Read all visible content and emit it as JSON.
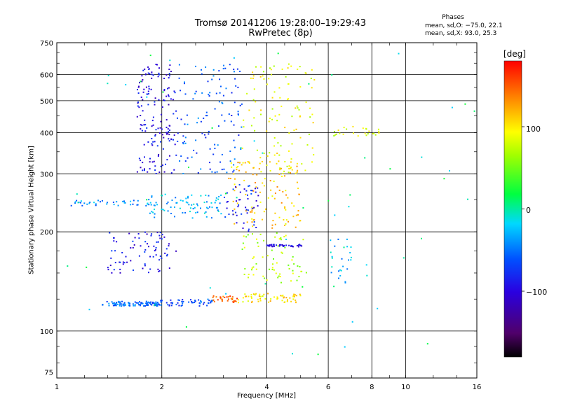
{
  "header": {
    "title_line1": "Tromsø 20141206 19:28:00–19:29:43",
    "title_line2": "RwPretec (8p)"
  },
  "phases_box": {
    "title": "Phases",
    "line_o": "mean, sd,O: −75.0, 22.1",
    "line_x": "mean, sd,X:  93.0, 25.3"
  },
  "colorbar": {
    "unit": "[deg]",
    "ticks": [
      "100",
      "0",
      "−100"
    ],
    "tick_values": [
      100,
      0,
      -100
    ],
    "range": [
      -180,
      180
    ],
    "colormap": "rainbow (black-purple-blue-cyan-green-yellow-orange-red)"
  },
  "chart_data": {
    "type": "scatter",
    "xlabel": "Frequency [MHz]",
    "ylabel": "Stationary phase Virtual Height [km]",
    "xscale": "log",
    "yscale": "log",
    "xlim": [
      1,
      16
    ],
    "ylim": [
      72,
      750
    ],
    "x_ticks": [
      1,
      2,
      4,
      6,
      8,
      10,
      16
    ],
    "y_ticks": [
      75,
      100,
      200,
      300,
      400,
      500,
      600,
      750
    ],
    "x_tick_labels": [
      "1",
      "2",
      "4",
      "6",
      "8",
      "10",
      "16"
    ],
    "y_tick_labels": [
      "75",
      "100",
      "200",
      "300",
      "400",
      "500",
      "600",
      "750"
    ],
    "x_grid": [
      2,
      4,
      6,
      8,
      10
    ],
    "y_grid": [
      100,
      200,
      300,
      400,
      500,
      600
    ],
    "color_by": "phase_deg",
    "point_clusters": [
      {
        "x_range": [
          1.35,
          1.95
        ],
        "y_range": [
          119,
          123
        ],
        "phase_deg": -55,
        "n": 90,
        "note": "O-mode E trace"
      },
      {
        "x_range": [
          1.9,
          2.8
        ],
        "y_range": [
          119,
          125
        ],
        "phase_deg": -65,
        "n": 60
      },
      {
        "x_range": [
          2.8,
          3.3
        ],
        "y_range": [
          122,
          128
        ],
        "phase_deg": 150,
        "n": 30
      },
      {
        "x_range": [
          3.3,
          5.0
        ],
        "y_range": [
          122,
          130
        ],
        "phase_deg": 100,
        "n": 60,
        "note": "X-mode E trace"
      },
      {
        "x_range": [
          1.1,
          2.0
        ],
        "y_range": [
          240,
          250
        ],
        "phase_deg": -40,
        "n": 40
      },
      {
        "x_range": [
          1.8,
          3.0
        ],
        "y_range": [
          220,
          260
        ],
        "phase_deg": -30,
        "n": 80
      },
      {
        "x_range": [
          1.7,
          2.2
        ],
        "y_range": [
          300,
          650
        ],
        "phase_deg": -95,
        "n": 160,
        "note": "O-mode F spread"
      },
      {
        "x_range": [
          2.2,
          3.4
        ],
        "y_range": [
          300,
          650
        ],
        "phase_deg": -60,
        "n": 120
      },
      {
        "x_range": [
          1.4,
          2.2
        ],
        "y_range": [
          150,
          200
        ],
        "phase_deg": -90,
        "n": 80
      },
      {
        "x_range": [
          3.1,
          5.0
        ],
        "y_range": [
          205,
          330
        ],
        "phase_deg": 110,
        "n": 120,
        "note": "X-mode F trace"
      },
      {
        "x_range": [
          3.0,
          3.8
        ],
        "y_range": [
          200,
          280
        ],
        "phase_deg": -85,
        "n": 50
      },
      {
        "x_range": [
          3.4,
          5.5
        ],
        "y_range": [
          300,
          650
        ],
        "phase_deg": 90,
        "n": 110
      },
      {
        "x_range": [
          3.4,
          5.2
        ],
        "y_range": [
          140,
          200
        ],
        "phase_deg": 70,
        "n": 70
      },
      {
        "x_range": [
          4.0,
          5.1
        ],
        "y_range": [
          180,
          183
        ],
        "phase_deg": -100,
        "n": 40
      },
      {
        "x_range": [
          6.0,
          8.5
        ],
        "y_range": [
          390,
          420
        ],
        "phase_deg": 80,
        "n": 25
      },
      {
        "x_range": [
          6.0,
          7.0
        ],
        "y_range": [
          140,
          190
        ],
        "phase_deg": -30,
        "n": 25
      },
      {
        "x_range": [
          1.0,
          16.0
        ],
        "y_range": [
          80,
          700
        ],
        "phase_deg": 0,
        "n": 60,
        "note": "scattered noise"
      }
    ]
  }
}
